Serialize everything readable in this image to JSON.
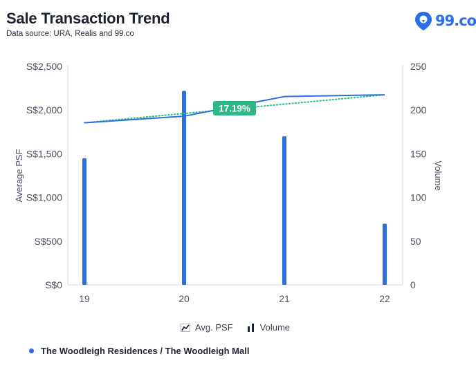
{
  "header": {
    "title": "Sale Transaction Trend",
    "subtitle": "Data source: URA, Realis and 99.co"
  },
  "logo": {
    "text": "99.co",
    "icon": "location-pin-icon",
    "color": "#2a6ee8"
  },
  "chart_data": {
    "type": "bar+line",
    "categories": [
      "19",
      "20",
      "21",
      "22"
    ],
    "series": [
      {
        "name": "Avg. PSF",
        "type": "line",
        "axis": "left",
        "values": [
          1855,
          1930,
          2155,
          2175
        ],
        "color": "#2e6fe0"
      },
      {
        "name": "Volume",
        "type": "bar",
        "axis": "right",
        "values": [
          145,
          222,
          170,
          70
        ],
        "color": "#2e6fe0"
      }
    ],
    "trendline": {
      "from": 1855,
      "to": 2175,
      "color": "#2fbf88",
      "style": "dotted"
    },
    "badge": {
      "label": "17.19%",
      "color": "#2eb886"
    },
    "left_axis": {
      "label": "Average PSF",
      "ticks": [
        "S$0",
        "S$500",
        "S$1,000",
        "S$1,500",
        "S$2,000",
        "S$2,500"
      ],
      "range": [
        0,
        2500
      ]
    },
    "right_axis": {
      "label": "Volume",
      "ticks": [
        "0",
        "50",
        "100",
        "150",
        "200",
        "250"
      ],
      "range": [
        0,
        250
      ]
    },
    "legend": [
      {
        "label": "Avg. PSF",
        "icon": "line-chart-icon"
      },
      {
        "label": "Volume",
        "icon": "bar-chart-icon"
      }
    ],
    "series_label": "The Woodleigh Residences / The Woodleigh Mall"
  }
}
